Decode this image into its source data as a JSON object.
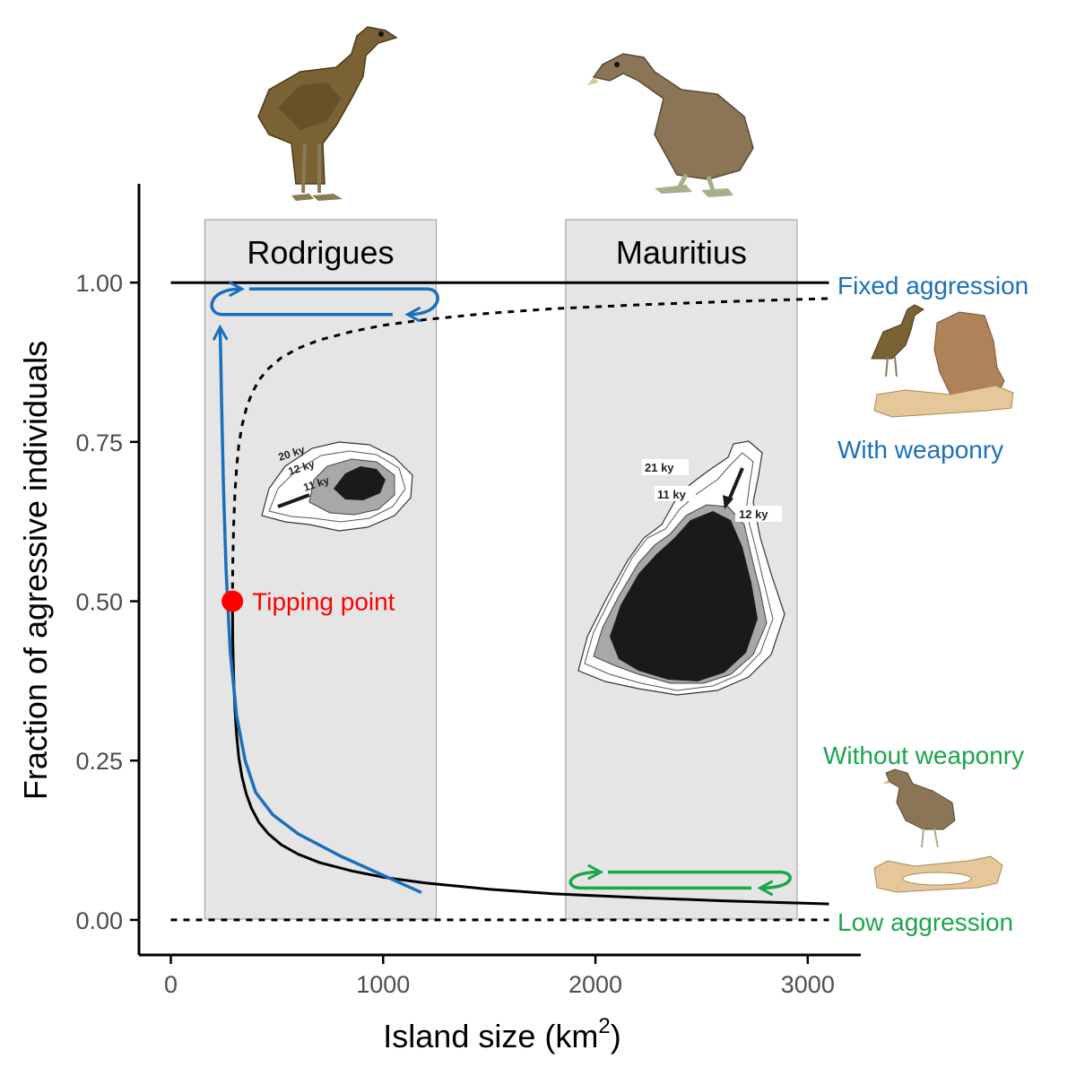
{
  "chart_data": {
    "type": "line",
    "title": "",
    "xlabel": "Island size (km",
    "xlabel_superscript": "2",
    "xlabel_suffix": ")",
    "ylabel": "Fraction of agressive individuals",
    "xlim": [
      -150,
      3250
    ],
    "ylim": [
      -0.055,
      1.155
    ],
    "x_ticks": [
      0,
      1000,
      2000,
      3000
    ],
    "x_tick_labels": [
      "0",
      "1000",
      "2000",
      "3000"
    ],
    "y_ticks": [
      0,
      0.25,
      0.5,
      0.75,
      1.0
    ],
    "y_tick_labels": [
      "0.00",
      "0.25",
      "0.50",
      "0.75",
      "1.00"
    ],
    "grid": false,
    "regions": [
      {
        "label": "Rodrigues",
        "x_range": [
          160,
          1250
        ],
        "color": "#e5e5e5"
      },
      {
        "label": "Mauritius",
        "x_range": [
          1860,
          2950
        ],
        "color": "#e5e5e5"
      }
    ],
    "series": [
      {
        "style": "solid",
        "color": "#000000",
        "x": [
          0,
          3100
        ],
        "y": [
          1.0,
          1.0
        ]
      },
      {
        "style": "dashed",
        "color": "#000000",
        "x": [
          0,
          3100
        ],
        "y": [
          0.0,
          0.0
        ]
      },
      {
        "style": "solid",
        "color": "#000000",
        "x": [
          290,
          292,
          296,
          302,
          310,
          320,
          335,
          355,
          380,
          415,
          460,
          520,
          600,
          700,
          850,
          1000,
          1200,
          1500,
          1800,
          2200,
          2600,
          3100
        ],
        "y": [
          0.5,
          0.44,
          0.38,
          0.33,
          0.29,
          0.255,
          0.225,
          0.198,
          0.175,
          0.153,
          0.135,
          0.118,
          0.103,
          0.09,
          0.077,
          0.067,
          0.058,
          0.048,
          0.041,
          0.035,
          0.03,
          0.025
        ]
      },
      {
        "style": "dashed",
        "color": "#000000",
        "x": [
          290,
          292,
          296,
          302,
          310,
          320,
          335,
          355,
          380,
          415,
          460,
          520,
          600,
          700,
          850,
          1000,
          1200,
          1500,
          1800,
          2200,
          2600,
          3100
        ],
        "y": [
          0.5,
          0.56,
          0.62,
          0.67,
          0.71,
          0.745,
          0.775,
          0.802,
          0.825,
          0.847,
          0.865,
          0.882,
          0.897,
          0.91,
          0.923,
          0.933,
          0.942,
          0.952,
          0.959,
          0.965,
          0.97,
          0.975
        ]
      }
    ],
    "trajectories": [
      {
        "color": "#1a6fbd",
        "x": [
          1180,
          1000,
          800,
          600,
          480,
          400,
          350,
          310,
          280,
          260,
          248,
          240,
          235,
          232
        ],
        "y": [
          0.043,
          0.07,
          0.1,
          0.135,
          0.165,
          0.2,
          0.25,
          0.32,
          0.42,
          0.55,
          0.68,
          0.8,
          0.88,
          0.93
        ]
      },
      {
        "color": "#1a6fbd",
        "loop_x": [
          200,
          1250
        ],
        "loop_y": [
          0.95,
          0.99
        ]
      },
      {
        "color": "#1aa64a",
        "loop_x": [
          1890,
          2910
        ],
        "loop_y": [
          0.05,
          0.075
        ]
      }
    ],
    "points": [
      {
        "label": "Tipping point",
        "x": 290,
        "y": 0.5,
        "color": "#ff0000"
      }
    ],
    "annotations": {
      "fixed_aggression": {
        "text": "Fixed aggression",
        "color": "#1a6fbd"
      },
      "with_weaponry": {
        "text": "With weaponry",
        "color": "#1a6fbd"
      },
      "without_weaponry": {
        "text": "Without weaponry",
        "color": "#1aa64a"
      },
      "low_aggression": {
        "text": "Low aggression",
        "color": "#1aa64a"
      }
    },
    "island_maps": {
      "rodrigues_labels": [
        "20 ky",
        "12 ky",
        "11 ky"
      ],
      "mauritius_labels": [
        "21 ky",
        "11 ky",
        "12 ky"
      ]
    },
    "illustrations": [
      "solitaire-bird",
      "dodo-bird",
      "solitaire-with-bone",
      "dodo-with-bone"
    ]
  }
}
